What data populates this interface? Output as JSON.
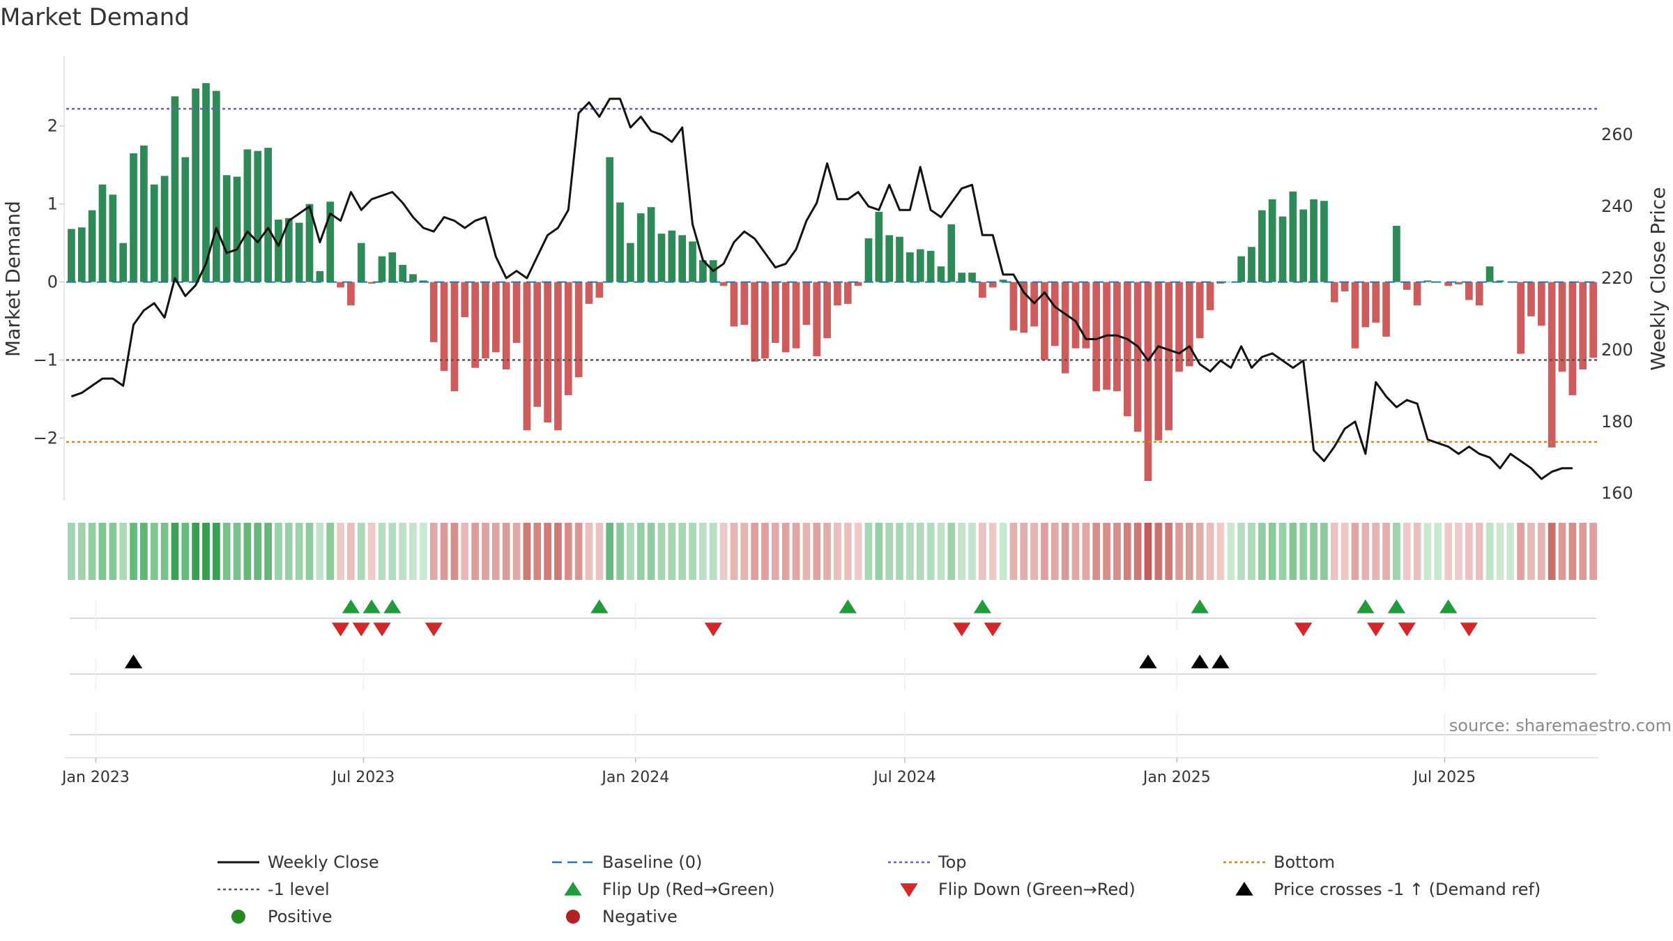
{
  "title": "Market Demand",
  "source": "source: sharemaestro.com",
  "colors": {
    "positive": "#2e8b57",
    "negative": "#cd5c5c",
    "price": "#111111",
    "baseline": "#1f77b4",
    "top": "#6a5acd",
    "bottom": "#d4880f",
    "minus1": "#555555",
    "flip_up": "#1f9d3a",
    "flip_down": "#d62728",
    "cross": "#000000",
    "legend_positive": "#228b22",
    "legend_negative": "#b22222"
  },
  "chart_data": {
    "type": "bar",
    "title": "Market Demand",
    "ylabel": "Market Demand",
    "ylabel_right": "Weekly Close Price",
    "ylim": [
      -2.8,
      2.9
    ],
    "ylim_right": [
      158,
      282
    ],
    "yticks": [
      -2,
      -1,
      0,
      1,
      2
    ],
    "yticks_right": [
      160,
      180,
      200,
      220,
      240,
      260
    ],
    "top_level": 2.22,
    "bottom_level": -2.05,
    "minus1_level": -1,
    "start_date": "2022-12-12",
    "x_ticks": [
      {
        "label": "Jan 2023",
        "date": "2023-01-01"
      },
      {
        "label": "Jul 2023",
        "date": "2023-07-01"
      },
      {
        "label": "Jan 2024",
        "date": "2024-01-01"
      },
      {
        "label": "Jul 2024",
        "date": "2024-07-01"
      },
      {
        "label": "Jan 2025",
        "date": "2025-01-01"
      },
      {
        "label": "Jul 2025",
        "date": "2025-07-01"
      }
    ],
    "demand": [
      0.68,
      0.7,
      0.92,
      1.25,
      1.12,
      0.5,
      1.65,
      1.75,
      1.25,
      1.36,
      2.38,
      1.6,
      2.48,
      2.55,
      2.45,
      1.37,
      1.35,
      1.7,
      1.68,
      1.72,
      0.8,
      0.82,
      0.76,
      1.0,
      0.14,
      1.03,
      -0.07,
      -0.3,
      0.5,
      -0.02,
      0.33,
      0.38,
      0.22,
      0.1,
      0.02,
      -0.77,
      -1.14,
      -1.4,
      -0.45,
      -1.1,
      -0.98,
      -0.9,
      -1.12,
      -0.78,
      -1.9,
      -1.6,
      -1.8,
      -1.9,
      -1.45,
      -1.22,
      -0.28,
      -0.2,
      1.6,
      1.02,
      0.5,
      0.88,
      0.96,
      0.62,
      0.66,
      0.6,
      0.52,
      0.28,
      0.28,
      -0.05,
      -0.57,
      -0.55,
      -1.02,
      -0.98,
      -0.78,
      -0.9,
      -0.85,
      -0.55,
      -0.95,
      -0.72,
      -0.3,
      -0.28,
      -0.05,
      0.56,
      0.9,
      0.6,
      0.58,
      0.38,
      0.42,
      0.4,
      0.2,
      0.74,
      0.12,
      0.12,
      -0.2,
      -0.07,
      0.03,
      -0.62,
      -0.65,
      -0.57,
      -1.0,
      -0.82,
      -1.17,
      -0.85,
      -0.85,
      -1.4,
      -1.38,
      -1.4,
      -1.72,
      -1.92,
      -2.55,
      -2.03,
      -1.9,
      -1.15,
      -1.08,
      -0.72,
      -0.36,
      -0.02,
      0.0,
      0.33,
      0.45,
      0.92,
      1.06,
      0.84,
      1.16,
      0.93,
      1.06,
      1.04,
      -0.26,
      -0.12,
      -0.85,
      -0.58,
      -0.52,
      -0.7,
      0.72,
      -0.1,
      -0.3,
      0.02,
      0.0,
      -0.05,
      -0.03,
      -0.23,
      -0.3,
      0.2,
      0.02,
      0.0,
      -0.92,
      -0.44,
      -0.56,
      -2.12,
      -1.15,
      -1.45,
      -1.12,
      -0.97
    ],
    "price": [
      187,
      188,
      190,
      192,
      192,
      190,
      207,
      211,
      213,
      209,
      220,
      215,
      218,
      224,
      234,
      227,
      228,
      233,
      230,
      234,
      229,
      236,
      238,
      240,
      230,
      238,
      236,
      244,
      239,
      242,
      243,
      244,
      241,
      237,
      234,
      233,
      237,
      236,
      234,
      236,
      237,
      226,
      220,
      222,
      220,
      226,
      232,
      234,
      239,
      266,
      269,
      265,
      270,
      270,
      262,
      265,
      261,
      260,
      258,
      262,
      235,
      225,
      222,
      224,
      230,
      233,
      231,
      227,
      223,
      224,
      228,
      236,
      241,
      252,
      242,
      242,
      244,
      240,
      239,
      246,
      239,
      239,
      251,
      239,
      237,
      241,
      245,
      246,
      232,
      232,
      221,
      221,
      216,
      213,
      216,
      212,
      210,
      208,
      203,
      203,
      204,
      204,
      203,
      201,
      197,
      201,
      200,
      199,
      201,
      196,
      194,
      197,
      195,
      201,
      195,
      198,
      199,
      197,
      195,
      197,
      172,
      169,
      173,
      178,
      180,
      171,
      191,
      187,
      184,
      186,
      185,
      175,
      174,
      173,
      171,
      173,
      171,
      170,
      167,
      171,
      169,
      167,
      164,
      166,
      167,
      167
    ],
    "heat": [
      0.68,
      0.7,
      0.92,
      1.25,
      1.12,
      0.5,
      1.65,
      1.75,
      1.25,
      1.36,
      2.38,
      1.6,
      2.48,
      2.55,
      2.45,
      1.37,
      1.35,
      1.7,
      1.68,
      1.72,
      0.8,
      0.82,
      0.76,
      1.0,
      0.14,
      1.03,
      -0.07,
      -0.3,
      0.5,
      -0.02,
      0.33,
      0.38,
      0.22,
      0.1,
      0.02,
      -0.77,
      -1.14,
      -1.4,
      -0.45,
      -1.1,
      -0.98,
      -0.9,
      -1.12,
      -0.78,
      -1.9,
      -1.6,
      -1.8,
      -1.9,
      -1.45,
      -1.22,
      -0.28,
      -0.2,
      1.6,
      1.02,
      0.5,
      0.88,
      0.96,
      0.62,
      0.66,
      0.6,
      0.52,
      0.28,
      0.28,
      -0.05,
      -0.57,
      -0.55,
      -1.02,
      -0.98,
      -0.78,
      -0.9,
      -0.85,
      -0.55,
      -0.95,
      -0.72,
      -0.3,
      -0.28,
      -0.05,
      0.56,
      0.9,
      0.6,
      0.58,
      0.38,
      0.42,
      0.4,
      0.2,
      0.74,
      0.12,
      0.12,
      -0.2,
      -0.07,
      0.03,
      -0.62,
      -0.65,
      -0.57,
      -1.0,
      -0.82,
      -1.17,
      -0.85,
      -0.85,
      -1.4,
      -1.38,
      -1.4,
      -1.72,
      -1.92,
      -2.55,
      -2.03,
      -1.9,
      -1.15,
      -1.08,
      -0.72,
      -0.36,
      -0.02,
      0.0,
      0.33,
      0.45,
      0.92,
      1.06,
      0.84,
      1.16,
      0.93,
      1.06,
      1.04,
      -0.26,
      -0.12,
      -0.85,
      -0.58,
      -0.52,
      -0.7,
      0.72,
      -0.1,
      -0.3,
      0.02,
      0.0,
      -0.05,
      -0.03,
      -0.23,
      -0.3,
      0.2,
      0.02,
      0.0,
      -0.92,
      -0.44,
      -0.56,
      -2.12,
      -1.15,
      -1.45,
      -1.12,
      -0.97
    ],
    "flip_up_weeks": [
      27,
      29,
      31,
      51,
      75,
      88,
      109,
      125,
      128,
      133
    ],
    "flip_down_weeks": [
      26,
      28,
      30,
      35,
      62,
      86,
      89,
      119,
      126,
      129,
      135
    ],
    "cross_weeks": [
      6,
      104,
      109,
      111
    ]
  },
  "legend": [
    {
      "label": "Weekly Close",
      "symbol": "line-solid",
      "color_key": "price"
    },
    {
      "label": "Baseline (0)",
      "symbol": "line-dash",
      "color_key": "baseline"
    },
    {
      "label": "Top",
      "symbol": "line-dot",
      "color_key": "top"
    },
    {
      "label": "Bottom",
      "symbol": "line-dot",
      "color_key": "bottom"
    },
    {
      "label": "-1 level",
      "symbol": "line-dot",
      "color_key": "minus1"
    },
    {
      "label": "Flip Up (Red→Green)",
      "symbol": "tri-up",
      "color_key": "flip_up"
    },
    {
      "label": "Flip Down (Green→Red)",
      "symbol": "tri-down",
      "color_key": "flip_down"
    },
    {
      "label": "Price crosses -1 ↑ (Demand ref)",
      "symbol": "tri-up",
      "color_key": "cross"
    },
    {
      "label": "Positive",
      "symbol": "circle",
      "color_key": "legend_positive"
    },
    {
      "label": "Negative",
      "symbol": "circle",
      "color_key": "legend_negative"
    }
  ]
}
